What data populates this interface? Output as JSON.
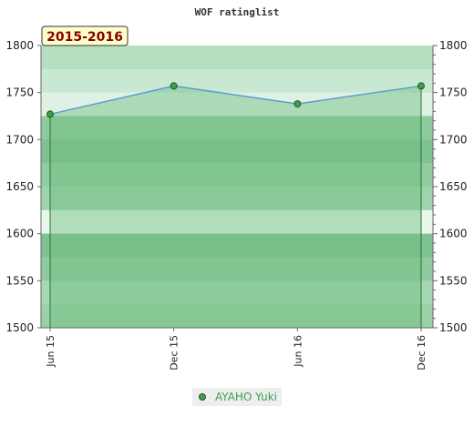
{
  "chart_data": {
    "type": "line",
    "title": "WOF ratinglist",
    "period_label": "2015-2016",
    "x": [
      "Jun 15",
      "Dec 15",
      "Jun 16",
      "Dec 16"
    ],
    "series": [
      {
        "name": "AYAHO Yuki",
        "values": [
          1727,
          1757,
          1738,
          1757
        ]
      }
    ],
    "ylim": [
      1500,
      1800
    ],
    "yticks": [
      1500,
      1550,
      1600,
      1650,
      1700,
      1750,
      1800
    ],
    "y_axis_left_labels": [
      "1800",
      "1750",
      "1700",
      "1650",
      "1600",
      "1550",
      "1500"
    ],
    "y_axis_right_labels": [
      "1800",
      "1750",
      "1700",
      "1650",
      "1600",
      "1550",
      "1500"
    ],
    "xlabel": "",
    "ylabel": "",
    "grid": true,
    "legend": "bottom-center",
    "colors": {
      "line": "#5b9bd5",
      "marker_fill": "#3e9e4f",
      "area_fill": "#6fbf7f",
      "badge_bg": "#ffffcc",
      "badge_text": "#8b0000",
      "legend_text": "#3e9e4f",
      "legend_bg": "#eeeeee"
    }
  }
}
